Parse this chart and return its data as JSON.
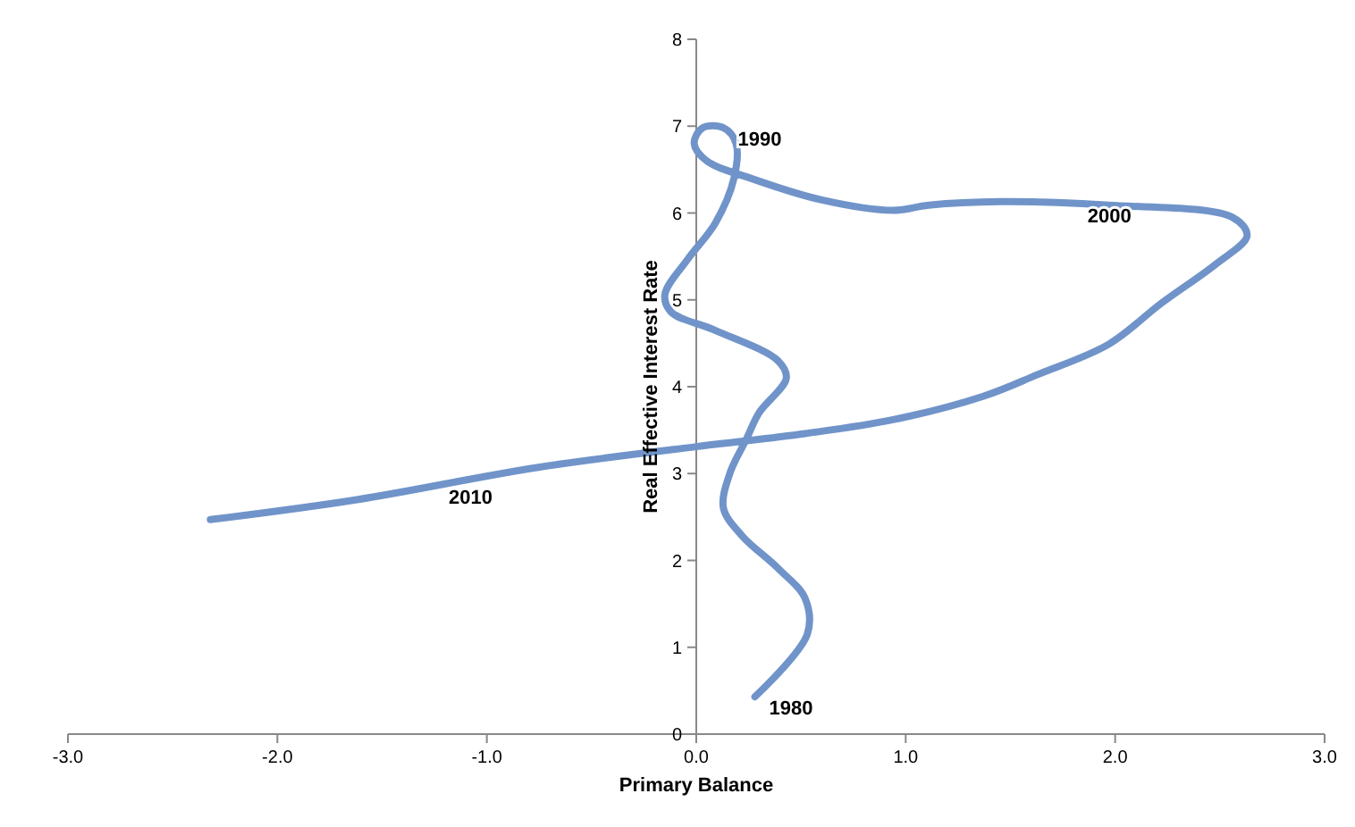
{
  "chart_data": {
    "type": "line",
    "xlabel": "Primary Balance",
    "ylabel": "Real Effective Interest Rate",
    "xlim": [
      -3,
      3
    ],
    "ylim": [
      0,
      8
    ],
    "xticks": [
      {
        "value": -3,
        "label": "-3.0"
      },
      {
        "value": -2,
        "label": "-2.0"
      },
      {
        "value": -1,
        "label": "-1.0"
      },
      {
        "value": 0,
        "label": "0.0"
      },
      {
        "value": 1,
        "label": "1.0"
      },
      {
        "value": 2,
        "label": "2.0"
      },
      {
        "value": 3,
        "label": "3.0"
      }
    ],
    "yticks": [
      0,
      1,
      2,
      3,
      4,
      5,
      6,
      7,
      8
    ],
    "grid": false,
    "marker": "none",
    "line_style": "solid",
    "series": [
      {
        "color": "#7094c9",
        "x": [
          0.28,
          0.53,
          0.52,
          0.39,
          0.22,
          0.13,
          0.16,
          0.24,
          0.3,
          0.43,
          0.39,
          0.09,
          -0.12,
          -0.15,
          -0.04,
          0.09,
          0.18,
          0.19,
          0.13,
          0.03,
          -0.01,
          0.05,
          0.26,
          0.6,
          0.94,
          1.11,
          1.45,
          1.97,
          2.56,
          2.63,
          2.48,
          2.22,
          1.97,
          1.63,
          1.37,
          0.94,
          0.52,
          0.0,
          -0.76,
          -1.62,
          -2.32
        ],
        "values": [
          0.43,
          1.15,
          1.56,
          1.91,
          2.28,
          2.6,
          3.0,
          3.4,
          3.7,
          4.1,
          4.3,
          4.65,
          4.86,
          5.06,
          5.47,
          5.88,
          6.4,
          6.8,
          6.98,
          6.98,
          6.8,
          6.6,
          6.4,
          6.15,
          6.03,
          6.09,
          6.13,
          6.09,
          5.95,
          5.74,
          5.41,
          4.96,
          4.49,
          4.14,
          3.89,
          3.62,
          3.46,
          3.31,
          3.07,
          2.7,
          2.47
        ]
      }
    ],
    "annotations": [
      {
        "text": "1980",
        "x": 0.28,
        "y": 0.43
      },
      {
        "text": "1990",
        "x": 0.13,
        "y": 6.98
      },
      {
        "text": "2000",
        "x": 1.8,
        "y": 6.1
      },
      {
        "text": "2010",
        "x": -1.25,
        "y": 2.86
      }
    ]
  }
}
